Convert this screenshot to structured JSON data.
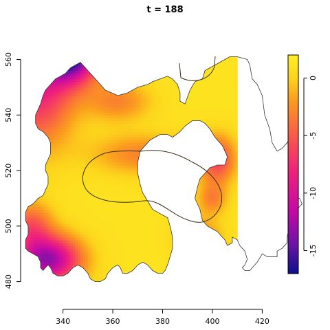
{
  "chart_data": {
    "type": "heatmap",
    "title": "t = 188",
    "xlabel": "",
    "ylabel": "",
    "xlim": [
      323,
      437
    ],
    "ylim": [
      470,
      574
    ],
    "x_ticks": [
      {
        "value": 340,
        "label": "340"
      },
      {
        "value": 360,
        "label": "360"
      },
      {
        "value": 380,
        "label": "380"
      },
      {
        "value": 400,
        "label": "400"
      },
      {
        "value": 420,
        "label": "420"
      }
    ],
    "y_ticks": [
      {
        "value": 480,
        "label": "480"
      },
      {
        "value": 500,
        "label": "500"
      },
      {
        "value": 520,
        "label": "520"
      },
      {
        "value": 540,
        "label": "540"
      },
      {
        "value": 560,
        "label": "560"
      }
    ],
    "colorbar": {
      "range": [
        -17,
        2
      ],
      "ticks": [
        {
          "value": 0,
          "label": "0"
        },
        {
          "value": -5,
          "label": "-5"
        },
        {
          "value": -10,
          "label": "-10"
        },
        {
          "value": -15,
          "label": "-15"
        }
      ],
      "stops": [
        {
          "value": -17,
          "color": "#0c0f8c"
        },
        {
          "value": -14.5,
          "color": "#6a14a8"
        },
        {
          "value": -11.5,
          "color": "#c40aa4"
        },
        {
          "value": -8,
          "color": "#f0237a"
        },
        {
          "value": -5,
          "color": "#f85a4a"
        },
        {
          "value": -2,
          "color": "#fb9a1f"
        },
        {
          "value": 0,
          "color": "#fcd41c"
        },
        {
          "value": 2,
          "color": "#fef024"
        }
      ]
    },
    "field": {
      "base": 1,
      "hotspots": [
        {
          "x": 343,
          "y": 562,
          "amp": -17.5,
          "sx": 8,
          "sy": 7
        },
        {
          "x": 330,
          "y": 550,
          "amp": -9,
          "sx": 10,
          "sy": 14
        },
        {
          "x": 334,
          "y": 488,
          "amp": -14,
          "sx": 9,
          "sy": 6
        },
        {
          "x": 327,
          "y": 500,
          "amp": -6,
          "sx": 6,
          "sy": 6
        },
        {
          "x": 362,
          "y": 545,
          "amp": -4,
          "sx": 9,
          "sy": 5
        },
        {
          "x": 372,
          "y": 526,
          "amp": -4,
          "sx": 14,
          "sy": 5
        },
        {
          "x": 402,
          "y": 524,
          "amp": -7,
          "sx": 5,
          "sy": 6
        },
        {
          "x": 400,
          "y": 510,
          "amp": -4,
          "sx": 4,
          "sy": 4
        },
        {
          "x": 395,
          "y": 496,
          "amp": -4,
          "sx": 6,
          "sy": 5
        }
      ]
    },
    "region_boundary": [
      [
        347,
        559
      ],
      [
        349,
        557
      ],
      [
        352,
        554
      ],
      [
        355,
        551
      ],
      [
        357,
        549
      ],
      [
        362,
        547
      ],
      [
        366,
        548
      ],
      [
        370,
        550
      ],
      [
        374,
        551
      ],
      [
        376,
        552
      ],
      [
        379,
        553
      ],
      [
        382,
        554
      ],
      [
        384,
        553
      ],
      [
        386,
        551
      ],
      [
        387,
        548
      ],
      [
        387,
        545
      ],
      [
        389,
        544
      ],
      [
        391,
        549
      ],
      [
        393,
        552
      ],
      [
        396,
        553
      ],
      [
        397,
        556
      ],
      [
        401,
        558
      ],
      [
        405,
        560
      ],
      [
        407,
        561
      ],
      [
        410,
        561
      ],
      [
        414,
        560
      ],
      [
        415,
        558
      ],
      [
        416,
        553
      ],
      [
        418,
        551
      ],
      [
        420,
        547
      ],
      [
        421,
        540
      ],
      [
        423,
        535
      ],
      [
        424,
        530
      ],
      [
        426,
        527
      ],
      [
        428,
        528
      ],
      [
        430,
        530
      ],
      [
        432,
        533
      ],
      [
        433,
        537
      ],
      [
        433,
        531
      ],
      [
        434,
        527
      ],
      [
        433,
        523
      ],
      [
        432,
        520
      ],
      [
        434,
        517
      ],
      [
        433,
        512
      ],
      [
        434,
        510
      ],
      [
        435,
        510
      ],
      [
        436,
        508
      ],
      [
        434,
        506
      ],
      [
        432,
        503
      ],
      [
        431,
        500
      ],
      [
        430,
        496
      ],
      [
        430,
        494
      ],
      [
        428,
        492
      ],
      [
        426,
        491
      ],
      [
        426,
        489
      ],
      [
        424,
        489
      ],
      [
        422,
        489
      ],
      [
        420,
        490
      ],
      [
        418,
        487
      ],
      [
        416,
        485
      ],
      [
        415,
        484
      ],
      [
        414,
        484
      ],
      [
        413,
        484
      ],
      [
        412,
        485
      ],
      [
        413,
        486
      ],
      [
        414,
        488
      ],
      [
        413,
        491
      ],
      [
        411,
        493
      ],
      [
        410,
        495
      ],
      [
        408,
        496
      ],
      [
        408,
        494
      ],
      [
        406,
        493
      ],
      [
        405,
        495
      ],
      [
        404,
        496
      ],
      [
        403,
        497
      ],
      [
        402,
        498
      ],
      [
        400,
        499
      ],
      [
        398,
        500
      ],
      [
        396,
        502
      ],
      [
        395,
        506
      ],
      [
        394,
        508
      ],
      [
        393,
        510
      ],
      [
        394,
        514
      ],
      [
        395,
        517
      ],
      [
        397,
        519
      ],
      [
        399,
        521
      ],
      [
        402,
        522
      ],
      [
        405,
        522
      ],
      [
        406,
        525
      ],
      [
        404,
        529
      ],
      [
        401,
        532
      ],
      [
        399,
        535
      ],
      [
        397,
        537
      ],
      [
        395,
        538
      ],
      [
        392,
        538
      ],
      [
        389,
        536
      ],
      [
        387,
        534
      ],
      [
        384,
        532
      ],
      [
        382,
        533
      ],
      [
        380,
        533
      ],
      [
        379,
        533
      ],
      [
        377,
        532
      ],
      [
        375,
        531
      ],
      [
        373,
        529
      ],
      [
        371,
        527
      ],
      [
        370,
        523
      ],
      [
        370,
        519
      ],
      [
        371,
        515
      ],
      [
        372,
        512
      ],
      [
        374,
        509
      ],
      [
        376,
        506
      ],
      [
        378,
        505
      ],
      [
        380,
        504
      ],
      [
        382,
        503
      ],
      [
        383,
        500
      ],
      [
        384,
        496
      ],
      [
        384,
        492
      ],
      [
        383,
        489
      ],
      [
        382,
        486
      ],
      [
        381,
        484
      ],
      [
        380,
        483
      ],
      [
        378,
        483
      ],
      [
        376,
        484
      ],
      [
        374,
        486
      ],
      [
        372,
        487
      ],
      [
        370,
        486
      ],
      [
        368,
        484
      ],
      [
        366,
        483
      ],
      [
        364,
        483
      ],
      [
        363,
        485
      ],
      [
        362,
        486
      ],
      [
        360,
        485
      ],
      [
        358,
        483
      ],
      [
        357,
        481
      ],
      [
        355,
        480
      ],
      [
        353,
        480
      ],
      [
        351,
        481
      ],
      [
        350,
        483
      ],
      [
        348,
        485
      ],
      [
        346,
        486
      ],
      [
        344,
        485
      ],
      [
        342,
        483
      ],
      [
        340,
        482
      ],
      [
        338,
        482
      ],
      [
        336,
        483
      ],
      [
        335,
        485
      ],
      [
        334,
        486
      ],
      [
        333,
        485
      ],
      [
        332,
        484
      ],
      [
        331,
        485
      ],
      [
        331,
        487
      ],
      [
        330,
        489
      ],
      [
        328,
        490
      ],
      [
        326,
        491
      ],
      [
        325,
        492
      ],
      [
        325,
        495
      ],
      [
        326,
        497
      ],
      [
        326,
        500
      ],
      [
        325,
        502
      ],
      [
        325,
        505
      ],
      [
        326,
        507
      ],
      [
        328,
        508
      ],
      [
        330,
        510
      ],
      [
        332,
        511
      ],
      [
        333,
        513
      ],
      [
        334,
        515
      ],
      [
        334,
        518
      ],
      [
        333,
        520
      ],
      [
        333,
        522
      ],
      [
        334,
        524
      ],
      [
        335,
        526
      ],
      [
        335,
        530
      ],
      [
        334,
        532
      ],
      [
        332,
        534
      ],
      [
        330,
        535
      ],
      [
        329,
        537
      ],
      [
        329,
        540
      ],
      [
        330,
        542
      ],
      [
        331,
        544
      ],
      [
        332,
        547
      ],
      [
        333,
        549
      ],
      [
        335,
        551
      ],
      [
        337,
        553
      ],
      [
        339,
        554
      ],
      [
        341,
        555
      ],
      [
        343,
        557
      ],
      [
        345,
        558
      ],
      [
        347,
        559
      ]
    ]
  }
}
